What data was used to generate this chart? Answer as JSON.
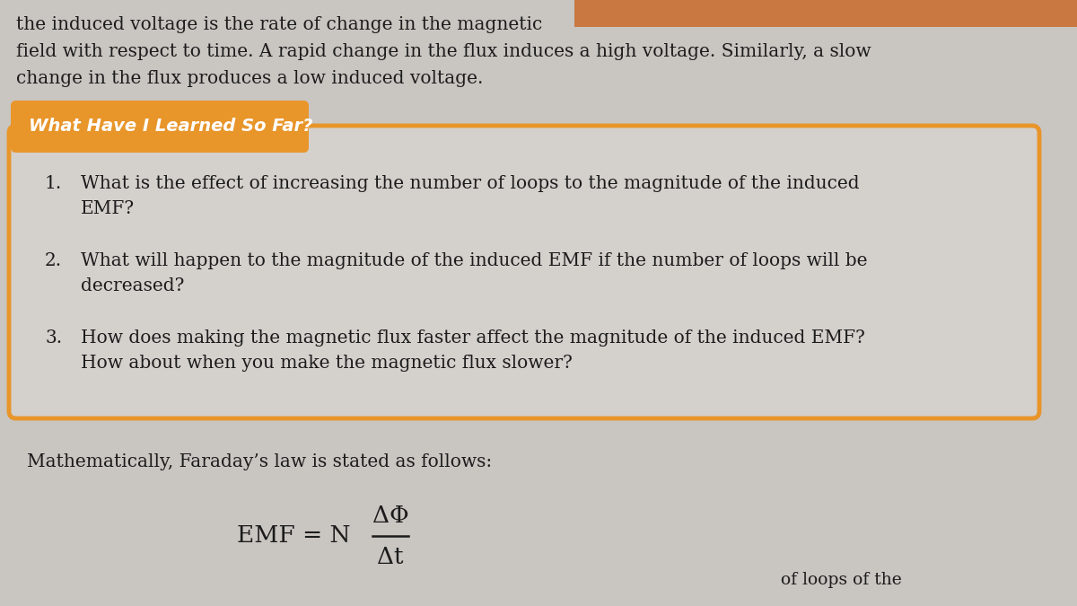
{
  "page_bg_left": "#c8c4c0",
  "page_bg_right": "#b8b4b0",
  "top_text_lines": [
    "the induced voltage is the rate of change in the magnetic",
    "field with respect to time. A rapid change in the flux induces a high voltage. Similarly, a slow",
    "change in the flux produces a low induced voltage."
  ],
  "top_highlight_color": "#c87840",
  "box_header": "What Have I Learned So Far?",
  "box_header_bg": "#e8952a",
  "box_header_text_color": "#ffffff",
  "box_bg": "#d4d0cc",
  "box_border_color": "#e8952a",
  "questions": [
    {
      "num": "1.",
      "line1": "What is the effect of increasing the number of loops to the magnitude of the induced",
      "line2": "EMF?"
    },
    {
      "num": "2.",
      "line1": "What will happen to the magnitude of the induced EMF if the number of loops will be",
      "line2": "decreased?"
    },
    {
      "num": "3.",
      "line1": "How does making the magnetic flux faster affect the magnitude of the induced EMF?",
      "line2": "How about when you make the magnetic flux slower?"
    }
  ],
  "math_intro": "Mathematically, Faraday’s law is stated as follows:",
  "formula_lhs": "EMF = N",
  "formula_num": "ΔΦ",
  "formula_den": "Δt",
  "bottom_text": "of loops of the",
  "text_color": "#1c1c1c",
  "body_fontsize": 14.5,
  "header_fontsize": 14,
  "formula_fontsize": 19
}
